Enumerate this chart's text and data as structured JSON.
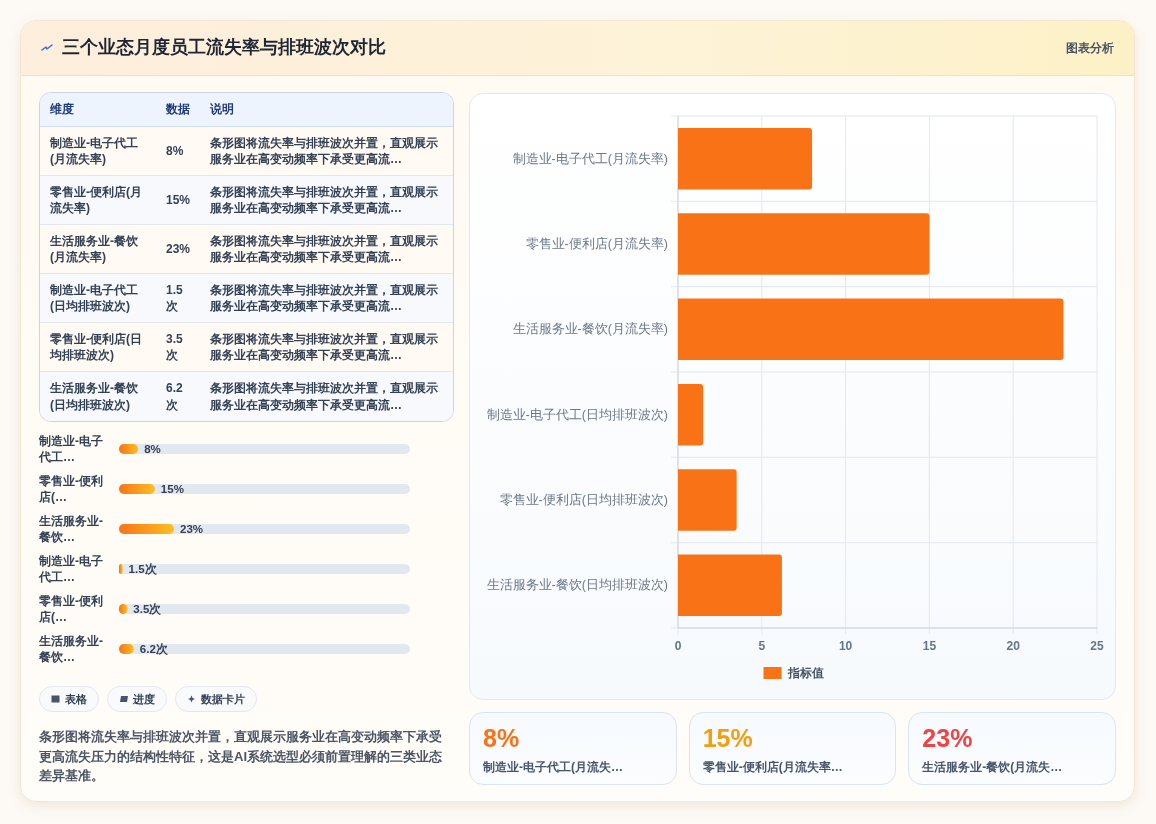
{
  "chart_data": [
    {
      "type": "other",
      "title": "三个业态月度员工流失率与排班波次对比",
      "annotations": [
        "图表分析"
      ]
    },
    {
      "type": "other",
      "categories": [
        "制造业-电子代工(月流失率)",
        "零售业-便利店(月流失率)",
        "生活服务业-餐饮(月流失率)",
        "制造业-电子代工(日均排班波次)",
        "零售业-便利店(日均排班波次)",
        "生活服务业-餐饮(日均排班波次)"
      ],
      "value_labels": [
        "8%",
        "15%",
        "23%",
        "1.5次",
        "3.5次",
        "6.2次"
      ],
      "annotations": [
        "维度",
        "数据",
        "说明",
        "条形图将流失率与排班波次并置，直观展示服务业在高变动频率下承受更高流…",
        "条形图将流失率与排班波次并置，直观展示服务业在高变动频率下承受更高流…",
        "条形图将流失率与排班波次并置，直观展示服务业在高变动频率下承受更高流…",
        "条形图将流失率与排班波次并置，直观展示服务业在高变动频率下承受更高流…",
        "条形图将流失率与排班波次并置，直观展示服务业在高变动频率下承受更高流…",
        "条形图将流失率与排班波次并置，直观展示服务业在高变动频率下承受更高流…"
      ]
    },
    {
      "type": "bar",
      "orientation": "horizontal",
      "categories": [
        "制造业-电子代工…",
        "零售业-便利店(…",
        "生活服务业-餐饮…",
        "制造业-电子代工…",
        "零售业-便利店(…",
        "生活服务业-餐饮…"
      ],
      "values": [
        8,
        15,
        23,
        1.5,
        3.5,
        6.2
      ],
      "value_labels": [
        "8%",
        "15%",
        "23%",
        "1.5次",
        "3.5次",
        "6.2次"
      ],
      "color": "#f97316",
      "tick_labels": "y"
    },
    {
      "type": "other",
      "categories": [
        "表格",
        "进度",
        "数据卡片"
      ],
      "annotations": [
        "条形图将流失率与排班波次并置，直观展示服务业在高变动频率下承受更高流失压力的结构性特征，这是AI系统选型必须前置理解的三类业态差异基准。"
      ]
    },
    {
      "type": "bar",
      "orientation": "horizontal",
      "categories": [
        "制造业-电子代工(月流失率)",
        "零售业-便利店(月流失率)",
        "生活服务业-餐饮(月流失率)",
        "制造业-电子代工(日均排班波次)",
        "零售业-便利店(日均排班波次)",
        "生活服务业-餐饮(日均排班波次)"
      ],
      "series": [
        {
          "name": "指标值",
          "color": "#f97316",
          "values": [
            8,
            15,
            23,
            1.5,
            3.5,
            6.2
          ]
        }
      ],
      "xlim": [
        0,
        25
      ],
      "xticks": [
        0,
        5,
        10,
        15,
        20,
        25
      ],
      "grid": true,
      "legend": "bottom"
    },
    {
      "type": "other",
      "categories": [
        "制造业-电子代工(月流失…",
        "零售业-便利店(月流失率…",
        "生活服务业-餐饮(月流失…"
      ],
      "value_labels": [
        "8%",
        "15%",
        "23%"
      ]
    }
  ]
}
